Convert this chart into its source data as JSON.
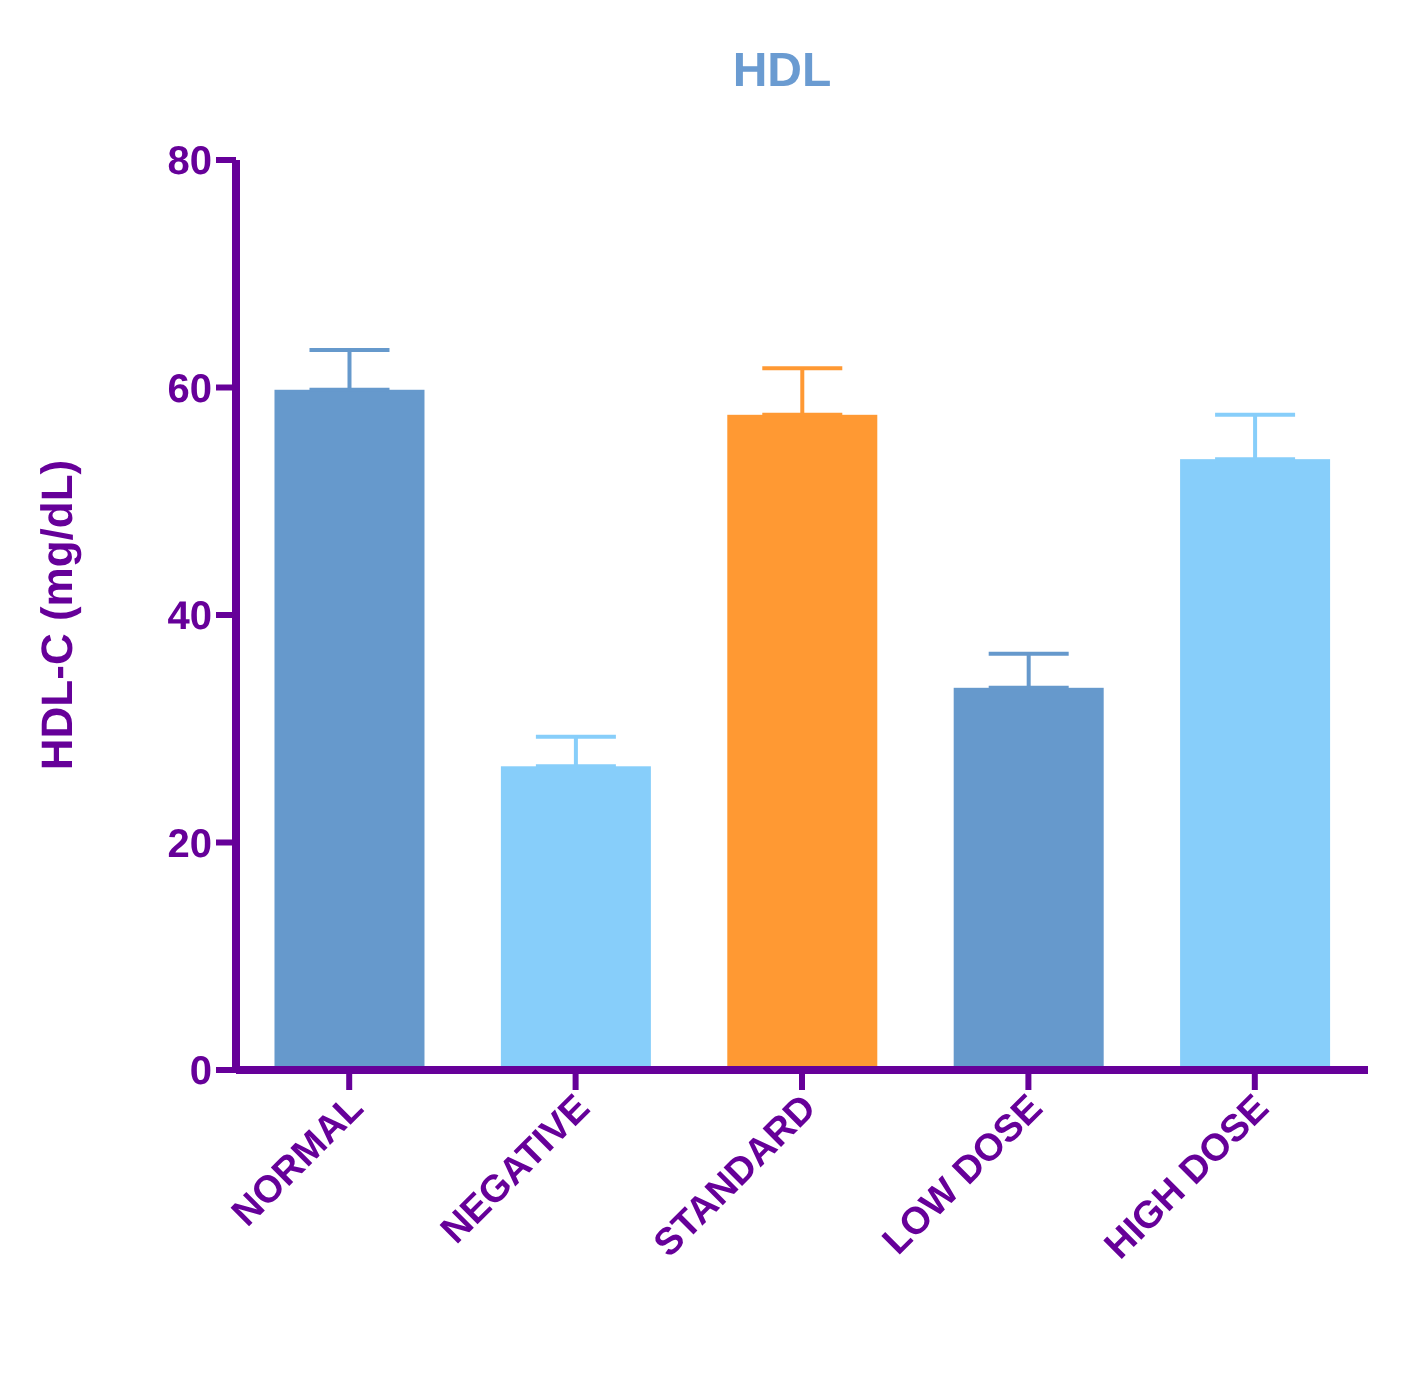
{
  "chart_data": {
    "type": "bar",
    "title": "HDL",
    "ylabel": "HDL-C (mg/dL)",
    "categories": [
      "NORMAL",
      "NEGATIVE",
      "STANDARD",
      "LOW DOSE",
      "HIGH DOSE"
    ],
    "values": [
      59.8,
      26.7,
      57.6,
      33.6,
      53.7
    ],
    "errors": [
      [
        59.8,
        63.3
      ],
      [
        26.7,
        29.3
      ],
      [
        57.6,
        61.7
      ],
      [
        33.6,
        36.6
      ],
      [
        53.7,
        57.6
      ]
    ],
    "colors": [
      "#6699cc",
      "#87cefa",
      "#ff9933",
      "#6699cc",
      "#87cefa"
    ],
    "ylim": [
      0,
      80
    ],
    "yticks": [
      0,
      20,
      40,
      60,
      80
    ],
    "grid": false,
    "legend": false
  }
}
